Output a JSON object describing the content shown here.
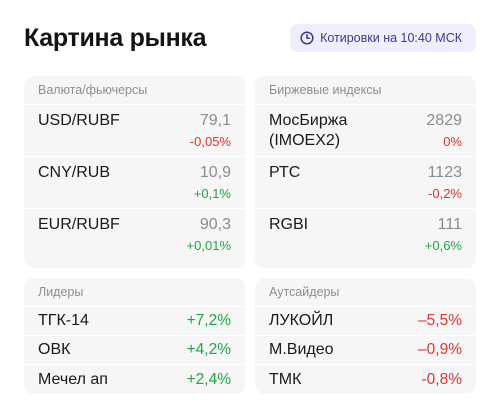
{
  "title": "Картина рынка",
  "quote_badge": {
    "icon": "clock-icon",
    "label": "Котировки на 10:40 МСК"
  },
  "colors": {
    "positive": "#1ea646",
    "negative": "#e0332f",
    "accent": "#3c3a8f"
  },
  "currency": {
    "header": "Валюта/фьючерсы",
    "rows": [
      {
        "name": "USD/RUBF",
        "price": "79,1",
        "change": "-0,05%",
        "dir": "neg"
      },
      {
        "name": "CNY/RUB",
        "price": "10,9",
        "change": "+0,1%",
        "dir": "pos"
      },
      {
        "name": "EUR/RUBF",
        "price": "90,3",
        "change": "+0,01%",
        "dir": "pos"
      }
    ]
  },
  "indices": {
    "header": "Биржевые индексы",
    "rows": [
      {
        "name": "МосБиржа (IMOEX2)",
        "price": "2829",
        "change": "0%",
        "dir": "neg"
      },
      {
        "name": "РТС",
        "price": "1123",
        "change": "-0,2%",
        "dir": "neg"
      },
      {
        "name": "RGBI",
        "price": "111",
        "change": "+0,6%",
        "dir": "pos"
      }
    ]
  },
  "leaders": {
    "header": "Лидеры",
    "rows": [
      {
        "name": "ТГК-14",
        "change": "+7,2%",
        "dir": "pos"
      },
      {
        "name": "ОВК",
        "change": "+4,2%",
        "dir": "pos"
      },
      {
        "name": "Мечел ап",
        "change": "+2,4%",
        "dir": "pos"
      }
    ]
  },
  "outsiders": {
    "header": "Аутсайдеры",
    "rows": [
      {
        "name": "ЛУКОЙЛ",
        "change": "–5,5%",
        "dir": "neg"
      },
      {
        "name": "М.Видео",
        "change": "–0,9%",
        "dir": "neg"
      },
      {
        "name": "ТМК",
        "change": "-0,8%",
        "dir": "neg"
      }
    ]
  }
}
